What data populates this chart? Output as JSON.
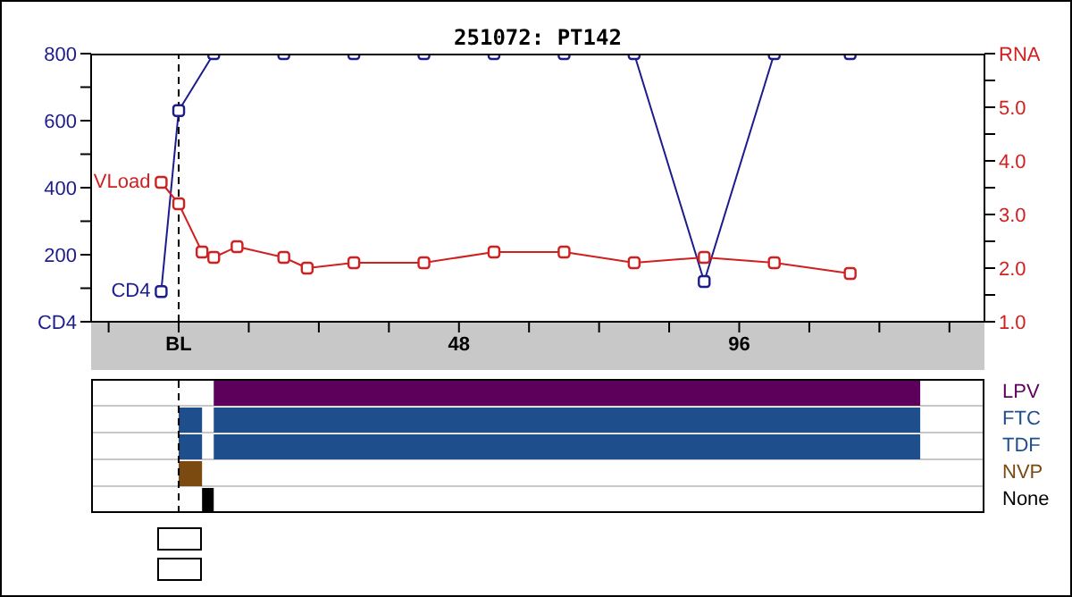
{
  "chart_data": [
    {
      "type": "line",
      "title": "251072: PT142",
      "marker": "square",
      "line_style": "solid",
      "series": [
        {
          "name": "CD4",
          "color": "#1c1c8c",
          "x": [
            -3,
            0,
            6,
            18,
            30,
            42,
            54,
            66,
            78,
            90,
            102,
            115
          ],
          "values": [
            90,
            630,
            800,
            800,
            800,
            800,
            800,
            800,
            800,
            120,
            800,
            800
          ]
        },
        {
          "name": "VLoad",
          "color": "#d02020",
          "axis": "y2",
          "x": [
            -3,
            0,
            4,
            6,
            10,
            18,
            22,
            30,
            42,
            54,
            66,
            78,
            90,
            102,
            115
          ],
          "values": [
            3.6,
            3.2,
            2.3,
            2.2,
            2.4,
            2.2,
            2.0,
            2.1,
            2.1,
            2.3,
            2.3,
            2.1,
            2.2,
            2.1,
            1.9
          ]
        }
      ],
      "xlim": [
        -15,
        138
      ],
      "xticks": [
        {
          "value": -12,
          "label": null
        },
        {
          "value": 0,
          "label": "BL"
        },
        {
          "value": 12,
          "label": null
        },
        {
          "value": 24,
          "label": null
        },
        {
          "value": 36,
          "label": null
        },
        48,
        {
          "value": 60,
          "label": null
        },
        {
          "value": 72,
          "label": null
        },
        {
          "value": 84,
          "label": null
        },
        96,
        {
          "value": 108,
          "label": null
        },
        {
          "value": 120,
          "label": null
        },
        {
          "value": 132,
          "label": null
        }
      ],
      "ylim": [
        0,
        800
      ],
      "yticks": [
        {
          "value": 0,
          "label": "CD4"
        },
        {
          "value": 100,
          "label": null
        },
        200,
        {
          "value": 300,
          "label": null
        },
        400,
        {
          "value": 500,
          "label": null
        },
        600,
        {
          "value": 700,
          "label": null
        },
        800
      ],
      "y2lim": [
        1,
        6
      ],
      "y2ticks": [
        {
          "value": 1,
          "label": "1.0"
        },
        {
          "value": 1.5,
          "label": null
        },
        {
          "value": 2,
          "label": "2.0"
        },
        {
          "value": 2.5,
          "label": null
        },
        {
          "value": 3,
          "label": "3.0"
        },
        {
          "value": 3.5,
          "label": null
        },
        {
          "value": 4,
          "label": "4.0"
        },
        {
          "value": 4.5,
          "label": null
        },
        {
          "value": 5,
          "label": "5.0"
        },
        {
          "value": 5.5,
          "label": null
        },
        {
          "value": 6,
          "label": "RNA"
        }
      ],
      "ref_lines": [
        {
          "axis": "x",
          "value": 0,
          "color": "#000000",
          "line_style": "dashed"
        }
      ]
    },
    {
      "type": "bar",
      "orientation": "horizontal",
      "tick_labels": "y",
      "grid": "y",
      "categories": [
        "LPV",
        "FTC",
        "TDF",
        "NVP",
        "None"
      ],
      "series": [
        {
          "base": [
            null,
            0,
            0,
            0,
            4
          ],
          "values": [
            null,
            4,
            4,
            4,
            2
          ],
          "colors": [
            "#5c005c",
            "#1f4e8c",
            "#1f4e8c",
            "#7a4a10",
            "#000000"
          ]
        },
        {
          "base": [
            6,
            6,
            6,
            null,
            null
          ],
          "values": [
            121,
            121,
            121,
            null,
            null
          ],
          "colors": [
            "#5c005c",
            "#1f4e8c",
            "#1f4e8c",
            "#7a4a10",
            "#000000"
          ]
        }
      ],
      "xlim": [
        -15,
        138
      ],
      "ref_lines": [
        {
          "axis": "x",
          "value": 0,
          "color": "#000000",
          "line_style": "dashed"
        }
      ]
    }
  ]
}
